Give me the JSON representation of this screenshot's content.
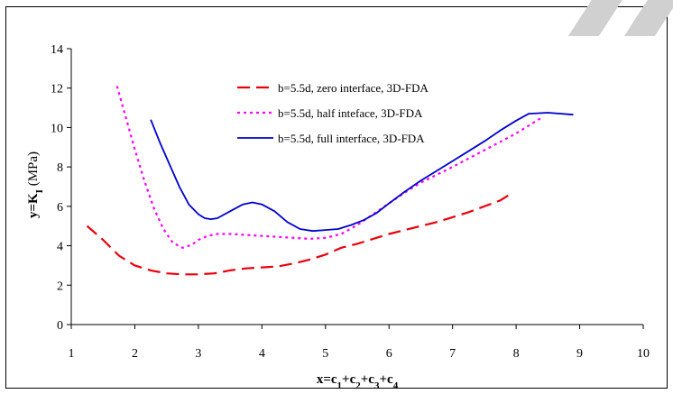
{
  "chart_data": {
    "type": "line",
    "title": "",
    "xlabel_parts": [
      "x=c",
      "1",
      "+c",
      "2",
      "+c",
      "3",
      "+c",
      "4"
    ],
    "ylabel_parts": [
      "y=K",
      "I",
      " (MPa)"
    ],
    "xlim": [
      1,
      10
    ],
    "ylim": [
      0,
      14
    ],
    "xticks": [
      1,
      2,
      3,
      4,
      5,
      6,
      7,
      8,
      9,
      10
    ],
    "yticks": [
      0,
      2,
      4,
      6,
      8,
      10,
      12,
      14
    ],
    "grid": false,
    "legend_position": "top-center",
    "series": [
      {
        "name": "b=5.5d, zero interface, 3D-FDA",
        "color": "#e8000b",
        "dash": "long-dash",
        "x": [
          1.25,
          1.5,
          1.75,
          2.0,
          2.25,
          2.5,
          2.75,
          3.0,
          3.25,
          3.5,
          3.75,
          4.0,
          4.25,
          4.5,
          4.75,
          5.0,
          5.25,
          5.5,
          5.75,
          6.0,
          6.25,
          6.5,
          6.75,
          7.0,
          7.25,
          7.5,
          7.75,
          7.9
        ],
        "y": [
          5.0,
          4.3,
          3.5,
          3.0,
          2.75,
          2.6,
          2.55,
          2.55,
          2.6,
          2.75,
          2.85,
          2.9,
          2.95,
          3.1,
          3.3,
          3.55,
          3.9,
          4.1,
          4.35,
          4.6,
          4.8,
          5.0,
          5.2,
          5.45,
          5.7,
          6.0,
          6.3,
          6.6
        ]
      },
      {
        "name": "b=5.5d, half inteface, 3D-FDA",
        "color": "#ff00ff",
        "dash": "dot",
        "x": [
          1.72,
          1.85,
          2.0,
          2.15,
          2.3,
          2.45,
          2.6,
          2.75,
          2.9,
          3.0,
          3.15,
          3.3,
          3.5,
          3.75,
          4.0,
          4.25,
          4.5,
          4.75,
          5.0,
          5.25,
          5.5,
          5.75,
          6.0,
          6.25,
          6.5,
          7.0,
          7.5,
          8.0,
          8.4
        ],
        "y": [
          12.1,
          10.6,
          8.9,
          7.3,
          5.9,
          4.85,
          4.15,
          3.9,
          4.05,
          4.3,
          4.5,
          4.6,
          4.6,
          4.55,
          4.5,
          4.45,
          4.4,
          4.35,
          4.4,
          4.6,
          5.05,
          5.6,
          6.15,
          6.7,
          7.2,
          8.0,
          8.85,
          9.7,
          10.5
        ]
      },
      {
        "name": "b=5.5d, full interface, 3D-FDA",
        "color": "#0000cc",
        "dash": "solid",
        "x": [
          2.25,
          2.4,
          2.55,
          2.7,
          2.85,
          3.0,
          3.1,
          3.2,
          3.3,
          3.5,
          3.7,
          3.85,
          4.0,
          4.2,
          4.4,
          4.6,
          4.8,
          5.0,
          5.2,
          5.4,
          5.6,
          5.8,
          6.0,
          6.25,
          6.5,
          6.75,
          7.0,
          7.25,
          7.5,
          7.75,
          8.0,
          8.2,
          8.5,
          8.9
        ],
        "y": [
          10.4,
          9.2,
          8.1,
          7.0,
          6.1,
          5.6,
          5.4,
          5.35,
          5.4,
          5.75,
          6.1,
          6.2,
          6.1,
          5.75,
          5.2,
          4.85,
          4.75,
          4.8,
          4.85,
          5.05,
          5.3,
          5.65,
          6.15,
          6.75,
          7.3,
          7.8,
          8.3,
          8.8,
          9.3,
          9.85,
          10.35,
          10.7,
          10.75,
          10.65
        ]
      }
    ]
  }
}
